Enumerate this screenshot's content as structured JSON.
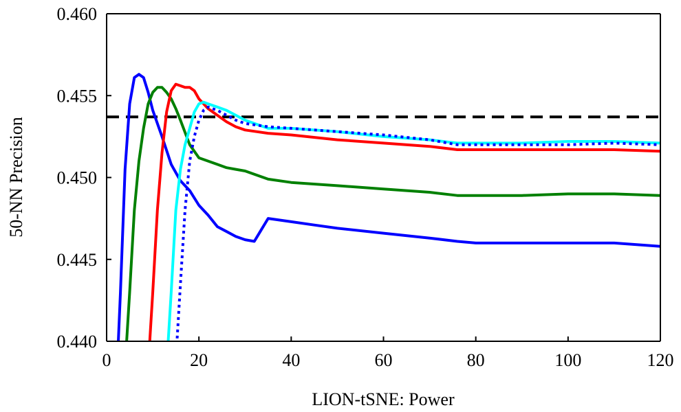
{
  "chart_data": {
    "type": "line",
    "title": "",
    "xlabel": "LION-tSNE: Power",
    "ylabel": "50-NN Precision",
    "xlim": [
      0,
      120
    ],
    "ylim": [
      0.44,
      0.46
    ],
    "x_ticks": [
      0,
      20,
      40,
      60,
      80,
      100,
      120
    ],
    "x_tick_labels": [
      "0",
      "20",
      "40",
      "60",
      "80",
      "100",
      "120"
    ],
    "y_ticks": [
      0.44,
      0.445,
      0.45,
      0.455,
      0.46
    ],
    "y_tick_labels": [
      "0.440",
      "0.445",
      "0.450",
      "0.455",
      "0.460"
    ],
    "grid": false,
    "legend": "none",
    "reference_line": {
      "y": 0.4537,
      "color": "#000000",
      "style": "dashed"
    },
    "series": [
      {
        "color": "#0000ff",
        "style": "solid",
        "x": [
          2.5,
          3,
          4,
          5,
          6,
          7,
          8,
          9,
          10,
          12,
          14,
          16,
          18,
          20,
          22,
          24,
          26,
          28,
          30,
          32,
          35,
          40,
          45,
          50,
          60,
          70,
          76,
          80,
          90,
          100,
          110,
          120
        ],
        "y": [
          0.4398,
          0.443,
          0.4505,
          0.4545,
          0.4561,
          0.4563,
          0.4561,
          0.4552,
          0.4541,
          0.4525,
          0.4508,
          0.4498,
          0.4492,
          0.4483,
          0.4477,
          0.447,
          0.4467,
          0.4464,
          0.4462,
          0.4461,
          0.4475,
          0.4473,
          0.4471,
          0.4469,
          0.4466,
          0.4463,
          0.4461,
          0.446,
          0.446,
          0.446,
          0.446,
          0.4458
        ]
      },
      {
        "color": "#008000",
        "style": "solid",
        "x": [
          4.3,
          5,
          6,
          7,
          8,
          9,
          10,
          11,
          12,
          13,
          14,
          15,
          16,
          18,
          20,
          22,
          24,
          26,
          28,
          30,
          35,
          40,
          50,
          60,
          70,
          76,
          80,
          90,
          100,
          110,
          120
        ],
        "y": [
          0.4398,
          0.443,
          0.448,
          0.451,
          0.453,
          0.4545,
          0.4552,
          0.4555,
          0.4555,
          0.4552,
          0.4548,
          0.4542,
          0.4535,
          0.452,
          0.4512,
          0.451,
          0.4508,
          0.4506,
          0.4505,
          0.4504,
          0.4499,
          0.4497,
          0.4495,
          0.4493,
          0.4491,
          0.4489,
          0.4489,
          0.4489,
          0.449,
          0.449,
          0.4489
        ]
      },
      {
        "color": "#ff0000",
        "style": "solid",
        "x": [
          9.3,
          10,
          11,
          12,
          13,
          14,
          15,
          16,
          17,
          18,
          19,
          20,
          22,
          24,
          26,
          28,
          30,
          35,
          40,
          50,
          60,
          70,
          76,
          80,
          90,
          100,
          110,
          120
        ],
        "y": [
          0.4398,
          0.443,
          0.448,
          0.4515,
          0.454,
          0.4553,
          0.4557,
          0.4556,
          0.4555,
          0.4555,
          0.4553,
          0.4548,
          0.4542,
          0.4538,
          0.4534,
          0.4531,
          0.4529,
          0.4527,
          0.4526,
          0.4523,
          0.4521,
          0.4519,
          0.4517,
          0.4517,
          0.4517,
          0.4517,
          0.4517,
          0.4516
        ]
      },
      {
        "color": "#00ffff",
        "style": "solid",
        "x": [
          13.3,
          14,
          15,
          16,
          17,
          18,
          19,
          20,
          21,
          22,
          24,
          26,
          28,
          30,
          35,
          40,
          50,
          60,
          70,
          76,
          80,
          90,
          100,
          110,
          120
        ],
        "y": [
          0.4398,
          0.443,
          0.448,
          0.4505,
          0.452,
          0.453,
          0.454,
          0.4545,
          0.4546,
          0.4545,
          0.4543,
          0.4541,
          0.4538,
          0.4535,
          0.453,
          0.453,
          0.4528,
          0.4525,
          0.4523,
          0.4521,
          0.4521,
          0.4521,
          0.4522,
          0.4522,
          0.4521
        ]
      },
      {
        "color": "#0000ff",
        "style": "dotted",
        "x": [
          15.2,
          16,
          17,
          18,
          19,
          20,
          21,
          22,
          24,
          26,
          28,
          30,
          35,
          40,
          50,
          60,
          70,
          76,
          80,
          90,
          100,
          110,
          120
        ],
        "y": [
          0.4398,
          0.4435,
          0.448,
          0.451,
          0.4525,
          0.4535,
          0.4541,
          0.4543,
          0.4541,
          0.4538,
          0.4535,
          0.4533,
          0.4531,
          0.453,
          0.4528,
          0.4526,
          0.4523,
          0.452,
          0.452,
          0.452,
          0.452,
          0.4521,
          0.452
        ]
      }
    ]
  }
}
